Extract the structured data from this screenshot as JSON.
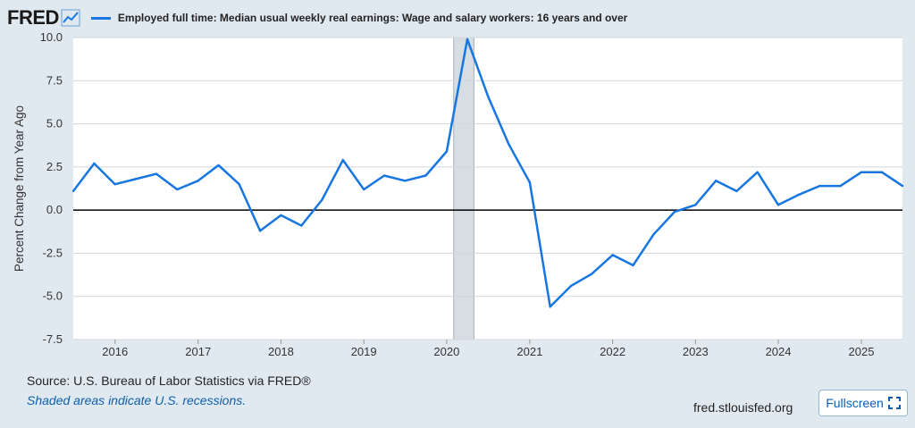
{
  "header": {
    "logo_text": "FRED",
    "logo_icon": "trend-graph-icon"
  },
  "colors": {
    "background": "#e1e9f0",
    "plot_background": "#ffffff",
    "series_line": "#1776e0",
    "recession_shade": "#d6dde3",
    "zero_line": "#000000"
  },
  "chart_data": {
    "type": "line",
    "title": "",
    "ylabel": "Percent Change from Year Ago",
    "xlabel": "",
    "ylim": [
      -7.5,
      10.0
    ],
    "xlim": [
      "2015-07-01",
      "2025-07-01"
    ],
    "yticks": [
      "10.0",
      "7.5",
      "5.0",
      "2.5",
      "0.0",
      "-2.5",
      "-5.0",
      "-7.5"
    ],
    "xticks": [
      "2016",
      "2017",
      "2018",
      "2019",
      "2020",
      "2021",
      "2022",
      "2023",
      "2024",
      "2025"
    ],
    "grid": true,
    "zero_line": true,
    "legend_position": "top-left",
    "recession_shading": [
      {
        "start": "2020-02-01",
        "end": "2020-04-30"
      }
    ],
    "series": [
      {
        "name": "Employed full time: Median usual weekly real earnings: Wage and salary workers: 16 years and over",
        "frequency": "quarterly",
        "x": [
          "2015-07-01",
          "2015-10-01",
          "2016-01-01",
          "2016-04-01",
          "2016-07-01",
          "2016-10-01",
          "2017-01-01",
          "2017-04-01",
          "2017-07-01",
          "2017-10-01",
          "2018-01-01",
          "2018-04-01",
          "2018-07-01",
          "2018-10-01",
          "2019-01-01",
          "2019-04-01",
          "2019-07-01",
          "2019-10-01",
          "2020-01-01",
          "2020-04-01",
          "2020-07-01",
          "2020-10-01",
          "2021-01-01",
          "2021-04-01",
          "2021-07-01",
          "2021-10-01",
          "2022-01-01",
          "2022-04-01",
          "2022-07-01",
          "2022-10-01",
          "2023-01-01",
          "2023-04-01",
          "2023-07-01",
          "2023-10-01",
          "2024-01-01",
          "2024-04-01",
          "2024-07-01",
          "2024-10-01",
          "2025-01-01",
          "2025-04-01",
          "2025-07-01"
        ],
        "values": [
          1.1,
          2.7,
          1.5,
          1.8,
          2.1,
          1.2,
          1.7,
          2.6,
          1.5,
          -1.2,
          -0.3,
          -0.9,
          0.6,
          2.9,
          1.2,
          2.0,
          1.7,
          2.0,
          3.4,
          9.9,
          6.6,
          3.8,
          1.6,
          -5.6,
          -4.4,
          -3.7,
          -2.6,
          -3.2,
          -1.4,
          -0.1,
          0.3,
          1.7,
          1.1,
          2.2,
          0.3,
          0.9,
          1.4,
          1.4,
          2.2,
          2.2,
          1.4
        ]
      }
    ]
  },
  "footer": {
    "source": "Source: U.S. Bureau of Labor Statistics via FRED®",
    "note": "Shaded areas indicate U.S. recessions.",
    "site": "fred.stlouisfed.org",
    "fullscreen_label": "Fullscreen",
    "fullscreen_icon": "fullscreen-icon"
  }
}
